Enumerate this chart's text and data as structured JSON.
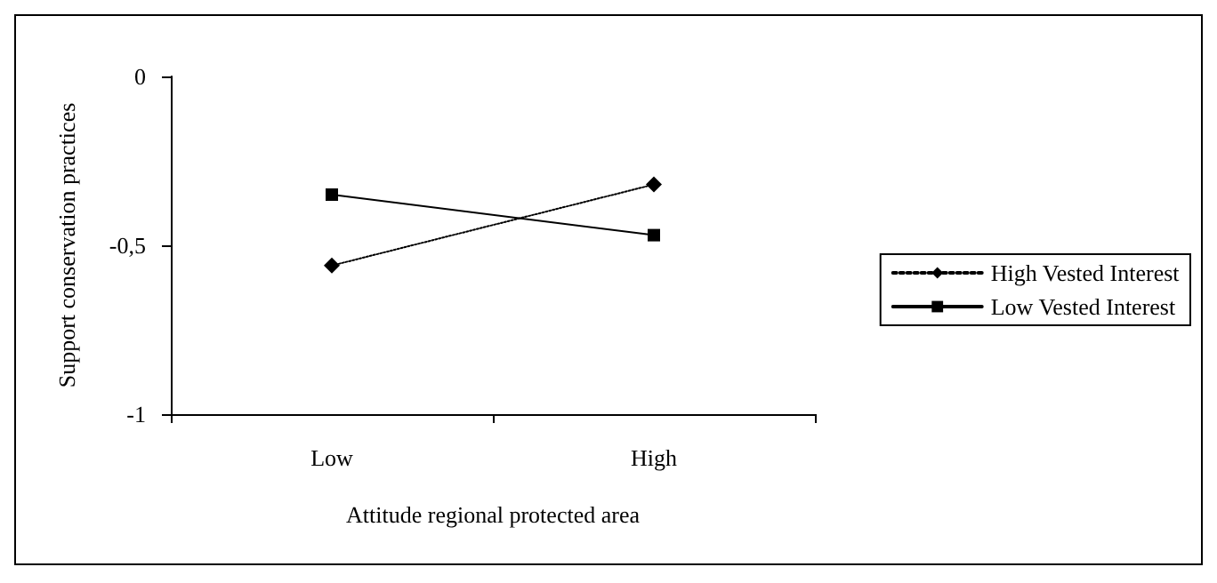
{
  "chart_data": {
    "type": "line",
    "xlabel": "Attitude regional protected area",
    "ylabel": "Support conservation practices",
    "categories": [
      "Low",
      "High"
    ],
    "series": [
      {
        "name": "High Vested Interest",
        "color": "#000000",
        "values": [
          -0.56,
          -0.32
        ],
        "marker": "diamond",
        "line_style": "dotted"
      },
      {
        "name": "Low Vested Interest",
        "color": "#000000",
        "values": [
          -0.35,
          -0.47
        ],
        "marker": "square",
        "line_style": "solid"
      }
    ],
    "ylim": [
      -1,
      0
    ],
    "yticks": [
      {
        "value": -1,
        "label": "-1"
      },
      {
        "value": -0.5,
        "label": "-0,5"
      },
      {
        "value": 0,
        "label": "0"
      }
    ],
    "grid": false,
    "legend": "right"
  }
}
